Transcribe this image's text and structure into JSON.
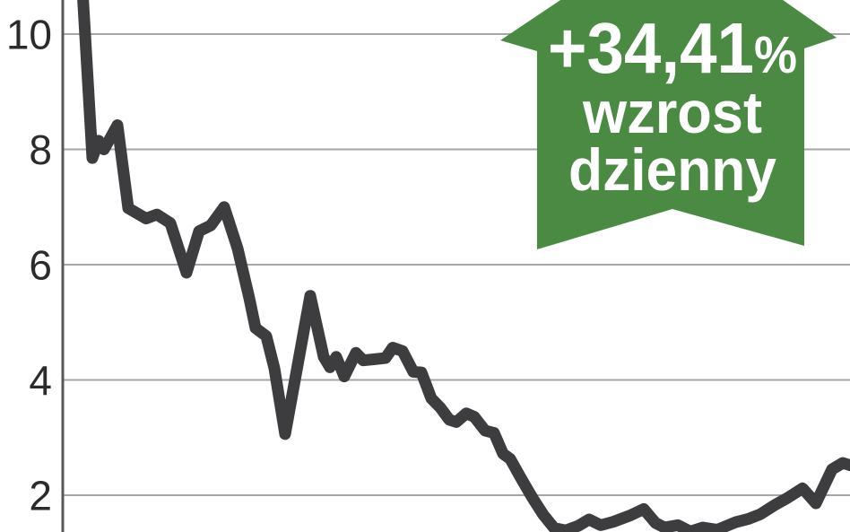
{
  "badge": {
    "value": "+34,41",
    "percent_sign": "%",
    "label_line1": "wzrost",
    "label_line2": "dzienny",
    "color": "#4a8a42",
    "text_color": "#ffffff"
  },
  "colors": {
    "line": "#3d3d3f",
    "gridline": "#a6a6a6",
    "axis": "#58585a",
    "tick_text": "#2b2b2d",
    "background": "#ffffff"
  },
  "chart_data": {
    "type": "line",
    "title": "",
    "xlabel": "",
    "ylabel": "",
    "grid": "horizontal",
    "legend": "none",
    "x_axis_labels_visible": false,
    "y_ticks": [
      10,
      8,
      6,
      4,
      2
    ],
    "ylim_visible": [
      1.3,
      10.6
    ],
    "annotation": "+34,41% wzrost dzienny",
    "line_color": "#3d3d3f",
    "series_name": "price",
    "points": [
      [
        0.0228,
        11.3
      ],
      [
        0.0376,
        7.85
      ],
      [
        0.0456,
        8.15
      ],
      [
        0.0524,
        8.0
      ],
      [
        0.0695,
        8.42
      ],
      [
        0.0831,
        6.98
      ],
      [
        0.0934,
        6.9
      ],
      [
        0.1059,
        6.8
      ],
      [
        0.1196,
        6.87
      ],
      [
        0.1367,
        6.72
      ],
      [
        0.1572,
        5.86
      ],
      [
        0.1731,
        6.58
      ],
      [
        0.1879,
        6.68
      ],
      [
        0.205,
        7.0
      ],
      [
        0.2221,
        6.28
      ],
      [
        0.2369,
        5.42
      ],
      [
        0.2449,
        4.9
      ],
      [
        0.2585,
        4.76
      ],
      [
        0.2688,
        4.2
      ],
      [
        0.2825,
        3.06
      ],
      [
        0.3144,
        5.46
      ],
      [
        0.3314,
        4.4
      ],
      [
        0.3394,
        4.22
      ],
      [
        0.3474,
        4.4
      ],
      [
        0.3576,
        4.06
      ],
      [
        0.3724,
        4.47
      ],
      [
        0.3815,
        4.34
      ],
      [
        0.3963,
        4.36
      ],
      [
        0.41,
        4.38
      ],
      [
        0.4191,
        4.56
      ],
      [
        0.4317,
        4.5
      ],
      [
        0.4453,
        4.14
      ],
      [
        0.4556,
        4.13
      ],
      [
        0.4681,
        3.68
      ],
      [
        0.4795,
        3.52
      ],
      [
        0.4909,
        3.31
      ],
      [
        0.5,
        3.27
      ],
      [
        0.5125,
        3.42
      ],
      [
        0.5228,
        3.36
      ],
      [
        0.5364,
        3.12
      ],
      [
        0.5478,
        3.08
      ],
      [
        0.5592,
        2.72
      ],
      [
        0.5683,
        2.63
      ],
      [
        0.5831,
        2.27
      ],
      [
        0.5968,
        1.95
      ],
      [
        0.6105,
        1.66
      ],
      [
        0.6241,
        1.43
      ],
      [
        0.6389,
        1.39
      ],
      [
        0.6549,
        1.47
      ],
      [
        0.6686,
        1.58
      ],
      [
        0.6834,
        1.48
      ],
      [
        0.6993,
        1.54
      ],
      [
        0.721,
        1.65
      ],
      [
        0.738,
        1.76
      ],
      [
        0.7528,
        1.52
      ],
      [
        0.7642,
        1.44
      ],
      [
        0.7813,
        1.48
      ],
      [
        0.7973,
        1.37
      ],
      [
        0.8132,
        1.44
      ],
      [
        0.8315,
        1.4
      ],
      [
        0.8542,
        1.53
      ],
      [
        0.8713,
        1.59
      ],
      [
        0.8861,
        1.67
      ],
      [
        0.9032,
        1.82
      ],
      [
        0.9203,
        1.95
      ],
      [
        0.9397,
        2.12
      ],
      [
        0.9567,
        1.86
      ],
      [
        0.9772,
        2.45
      ],
      [
        0.9909,
        2.56
      ],
      [
        1.0,
        2.52
      ]
    ]
  }
}
